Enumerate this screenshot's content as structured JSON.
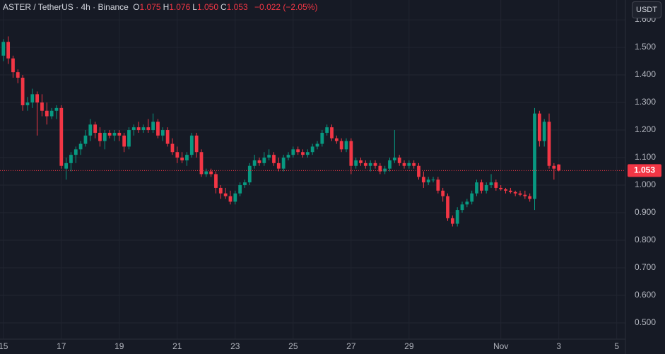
{
  "chart_data": {
    "type": "candlestick",
    "header": {
      "symbol": "ASTER / TetherUS · 4h · Binance",
      "ohlc": [
        {
          "key": "O",
          "value": "1.075"
        },
        {
          "key": "H",
          "value": "1.076"
        },
        {
          "key": "L",
          "value": "1.050"
        },
        {
          "key": "C",
          "value": "1.053"
        }
      ],
      "change": "−0.022 (−2.05%)",
      "currency": "USDT"
    },
    "up_color": "#089981",
    "down_color": "#f23645",
    "grid": true,
    "last_price": 1.053,
    "ylim": [
      0.441,
      1.672
    ],
    "yticks": [
      {
        "value": 0.5,
        "label": "0.500"
      },
      {
        "value": 0.6,
        "label": "0.600"
      },
      {
        "value": 0.7,
        "label": "0.700"
      },
      {
        "value": 0.8,
        "label": "0.800"
      },
      {
        "value": 0.9,
        "label": "0.900"
      },
      {
        "value": 1.0,
        "label": "1.000"
      },
      {
        "value": 1.1,
        "label": "1.100"
      },
      {
        "value": 1.2,
        "label": "1.200"
      },
      {
        "value": 1.3,
        "label": "1.300"
      },
      {
        "value": 1.4,
        "label": "1.400"
      },
      {
        "value": 1.5,
        "label": "1.500"
      },
      {
        "value": 1.6,
        "label": "1.600"
      }
    ],
    "xlim": [
      -0.7,
      128.8
    ],
    "xticks": [
      {
        "value": 0,
        "label": "15"
      },
      {
        "value": 12,
        "label": "17"
      },
      {
        "value": 24,
        "label": "19"
      },
      {
        "value": 36,
        "label": "21"
      },
      {
        "value": 48,
        "label": "23"
      },
      {
        "value": 60,
        "label": "25"
      },
      {
        "value": 72,
        "label": "27"
      },
      {
        "value": 84,
        "label": "29"
      },
      {
        "value": 103,
        "label": "Nov"
      },
      {
        "value": 115,
        "label": "3"
      },
      {
        "value": 127,
        "label": "5"
      }
    ],
    "open": [
      1.47,
      1.52,
      1.46,
      1.41,
      1.39,
      1.29,
      1.3,
      1.33,
      1.3,
      1.27,
      1.25,
      1.27,
      1.28,
      1.06,
      1.08,
      1.11,
      1.13,
      1.15,
      1.18,
      1.22,
      1.19,
      1.16,
      1.19,
      1.18,
      1.19,
      1.18,
      1.14,
      1.2,
      1.21,
      1.2,
      1.21,
      1.2,
      1.23,
      1.18,
      1.2,
      1.15,
      1.12,
      1.1,
      1.09,
      1.11,
      1.18,
      1.12,
      1.04,
      1.05,
      1.04,
      0.99,
      0.97,
      0.96,
      0.94,
      0.97,
      1.0,
      1.01,
      1.07,
      1.09,
      1.08,
      1.1,
      1.11,
      1.08,
      1.06,
      1.1,
      1.11,
      1.13,
      1.12,
      1.11,
      1.12,
      1.14,
      1.15,
      1.19,
      1.21,
      1.17,
      1.16,
      1.13,
      1.16,
      1.07,
      1.09,
      1.08,
      1.07,
      1.08,
      1.07,
      1.05,
      1.06,
      1.09,
      1.1,
      1.08,
      1.07,
      1.08,
      1.07,
      1.03,
      1.01,
      1.02,
      1.02,
      0.98,
      0.96,
      0.88,
      0.86,
      0.91,
      0.93,
      0.94,
      0.97,
      1.01,
      0.98,
      1.0,
      1.01,
      0.99,
      0.985,
      0.98,
      0.975,
      0.97,
      0.965,
      0.96,
      0.95,
      1.26,
      1.16,
      1.23,
      1.07,
      1.075
    ],
    "high": [
      1.53,
      1.54,
      1.47,
      1.42,
      1.4,
      1.32,
      1.35,
      1.34,
      1.33,
      1.3,
      1.28,
      1.29,
      1.29,
      1.1,
      1.12,
      1.14,
      1.16,
      1.2,
      1.24,
      1.23,
      1.21,
      1.2,
      1.2,
      1.2,
      1.2,
      1.19,
      1.21,
      1.22,
      1.23,
      1.22,
      1.24,
      1.26,
      1.24,
      1.21,
      1.21,
      1.17,
      1.14,
      1.12,
      1.12,
      1.19,
      1.19,
      1.13,
      1.06,
      1.06,
      1.05,
      1.0,
      0.99,
      0.98,
      0.98,
      1.01,
      1.02,
      1.08,
      1.11,
      1.1,
      1.12,
      1.13,
      1.12,
      1.1,
      1.11,
      1.12,
      1.14,
      1.14,
      1.13,
      1.13,
      1.15,
      1.16,
      1.2,
      1.22,
      1.22,
      1.18,
      1.17,
      1.17,
      1.17,
      1.1,
      1.1,
      1.09,
      1.09,
      1.09,
      1.08,
      1.07,
      1.1,
      1.2,
      1.11,
      1.09,
      1.09,
      1.09,
      1.08,
      1.05,
      1.03,
      1.03,
      1.03,
      0.99,
      0.97,
      0.89,
      0.92,
      0.94,
      0.95,
      0.98,
      1.02,
      1.02,
      1.01,
      1.04,
      1.02,
      1.0,
      0.99,
      0.99,
      0.98,
      0.98,
      0.98,
      0.97,
      1.28,
      1.27,
      1.24,
      1.26,
      1.08,
      1.076
    ],
    "low": [
      1.45,
      1.44,
      1.39,
      1.37,
      1.27,
      1.27,
      1.28,
      1.18,
      1.25,
      1.22,
      1.24,
      1.24,
      1.06,
      1.02,
      1.05,
      1.08,
      1.11,
      1.14,
      1.16,
      1.17,
      1.14,
      1.13,
      1.17,
      1.16,
      1.16,
      1.12,
      1.13,
      1.18,
      1.19,
      1.19,
      1.19,
      1.19,
      1.17,
      1.16,
      1.14,
      1.11,
      1.08,
      1.08,
      1.07,
      1.1,
      1.1,
      1.03,
      1.03,
      1.03,
      0.97,
      0.95,
      0.95,
      0.93,
      0.93,
      0.96,
      0.99,
      1.0,
      1.06,
      1.07,
      1.07,
      1.09,
      1.07,
      1.05,
      1.05,
      1.09,
      1.1,
      1.11,
      1.1,
      1.1,
      1.11,
      1.13,
      1.14,
      1.18,
      1.16,
      1.15,
      1.12,
      1.12,
      1.04,
      1.06,
      1.07,
      1.06,
      1.05,
      1.06,
      1.04,
      1.04,
      1.05,
      1.08,
      1.07,
      1.06,
      1.06,
      1.06,
      1.02,
      0.99,
      1.0,
      1.01,
      0.97,
      0.94,
      0.87,
      0.85,
      0.85,
      0.9,
      0.92,
      0.93,
      0.96,
      0.97,
      0.97,
      0.99,
      0.98,
      0.98,
      0.97,
      0.97,
      0.96,
      0.96,
      0.95,
      0.94,
      0.91,
      1.14,
      1.14,
      1.06,
      1.02,
      1.05
    ],
    "close": [
      1.52,
      1.46,
      1.41,
      1.39,
      1.29,
      1.3,
      1.33,
      1.3,
      1.27,
      1.25,
      1.27,
      1.28,
      1.07,
      1.08,
      1.11,
      1.13,
      1.15,
      1.18,
      1.22,
      1.19,
      1.16,
      1.19,
      1.18,
      1.19,
      1.18,
      1.14,
      1.2,
      1.21,
      1.2,
      1.21,
      1.2,
      1.23,
      1.18,
      1.2,
      1.15,
      1.12,
      1.1,
      1.09,
      1.11,
      1.18,
      1.12,
      1.04,
      1.05,
      1.04,
      0.99,
      0.97,
      0.96,
      0.94,
      0.97,
      1.0,
      1.01,
      1.07,
      1.09,
      1.08,
      1.1,
      1.11,
      1.08,
      1.06,
      1.1,
      1.11,
      1.13,
      1.12,
      1.11,
      1.12,
      1.14,
      1.15,
      1.19,
      1.21,
      1.17,
      1.16,
      1.13,
      1.16,
      1.07,
      1.09,
      1.08,
      1.07,
      1.08,
      1.07,
      1.05,
      1.06,
      1.09,
      1.1,
      1.08,
      1.07,
      1.08,
      1.07,
      1.03,
      1.01,
      1.02,
      1.02,
      0.98,
      0.96,
      0.88,
      0.86,
      0.91,
      0.93,
      0.94,
      0.97,
      1.01,
      0.98,
      1.0,
      1.01,
      0.99,
      0.985,
      0.98,
      0.975,
      0.97,
      0.965,
      0.96,
      0.95,
      1.26,
      1.16,
      1.23,
      1.07,
      1.06,
      1.053
    ]
  }
}
